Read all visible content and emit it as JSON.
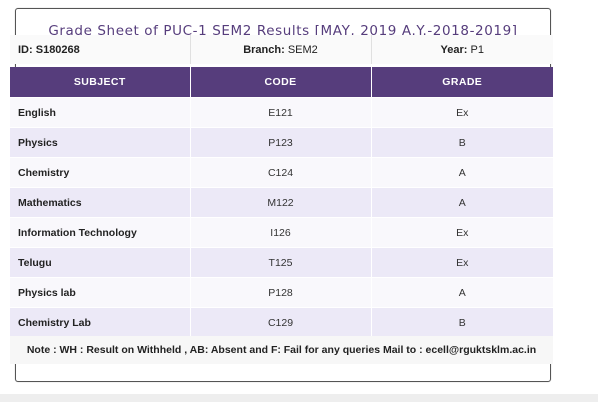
{
  "title": "Grade Sheet of PUC-1 SEM2 Results [MAY, 2019 A.Y.-2018-2019]",
  "info": {
    "id_label": "ID:",
    "id_value": "S180268",
    "branch_label": "Branch:",
    "branch_value": "SEM2",
    "year_label": "Year:",
    "year_value": "P1"
  },
  "table": {
    "headers": [
      "SUBJECT",
      "CODE",
      "GRADE"
    ],
    "rows": [
      {
        "subject": "English",
        "code": "E121",
        "grade": "Ex"
      },
      {
        "subject": "Physics",
        "code": "P123",
        "grade": "B"
      },
      {
        "subject": "Chemistry",
        "code": "C124",
        "grade": "A"
      },
      {
        "subject": "Mathematics",
        "code": "M122",
        "grade": "A"
      },
      {
        "subject": "Information Technology",
        "code": "I126",
        "grade": "Ex"
      },
      {
        "subject": "Telugu",
        "code": "T125",
        "grade": "Ex"
      },
      {
        "subject": "Physics lab",
        "code": "P128",
        "grade": "A"
      },
      {
        "subject": "Chemistry Lab",
        "code": "C129",
        "grade": "B"
      }
    ]
  },
  "note": "Note : WH : Result on Withheld , AB: Absent and F: Fail for any queries Mail to : ecell@rguktsklm.ac.in",
  "colors": {
    "header_bg": "#563d7c",
    "title_text": "#563d7c",
    "row_even_bg": "#ece9f7",
    "row_odd_bg": "#f9f8fc"
  }
}
